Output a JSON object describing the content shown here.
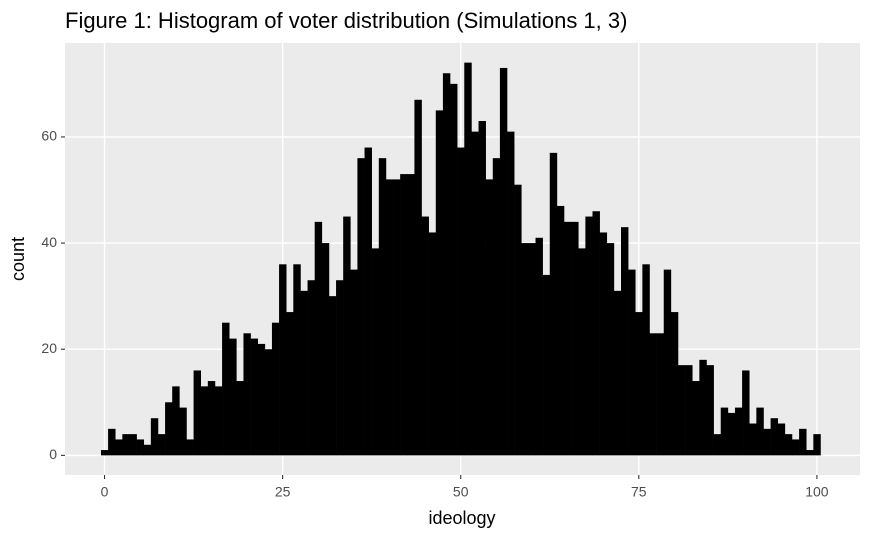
{
  "chart_data": {
    "type": "histogram",
    "title": "Figure 1: Histogram of voter distribution (Simulations 1, 3)",
    "x_label": "ideology",
    "y_label": "count",
    "color": "#000000",
    "grid": true,
    "bins": [
      -0.5,
      0.5,
      1.5,
      2.5,
      3.5,
      4.5,
      5.5,
      6.5,
      7.5,
      8.5,
      9.5,
      10.5,
      11.5,
      12.5,
      13.5,
      14.5,
      15.5,
      16.5,
      17.5,
      18.5,
      19.5,
      20.5,
      21.5,
      22.5,
      23.5,
      24.5,
      25.5,
      26.5,
      27.5,
      28.5,
      29.5,
      30.5,
      31.5,
      32.5,
      33.5,
      34.5,
      35.5,
      36.5,
      37.5,
      38.5,
      39.5,
      40.5,
      41.5,
      42.5,
      43.5,
      44.5,
      45.5,
      46.5,
      47.5,
      48.5,
      49.5,
      50.5,
      51.5,
      52.5,
      53.5,
      54.5,
      55.5,
      56.5,
      57.5,
      58.5,
      59.5,
      60.5,
      61.5,
      62.5,
      63.5,
      64.5,
      65.5,
      66.5,
      67.5,
      68.5,
      69.5,
      70.5,
      71.5,
      72.5,
      73.5,
      74.5,
      75.5,
      76.5,
      77.5,
      78.5,
      79.5,
      80.5,
      81.5,
      82.5,
      83.5,
      84.5,
      85.5,
      86.5,
      87.5,
      88.5,
      89.5,
      90.5,
      91.5,
      92.5,
      93.5,
      94.5,
      95.5,
      96.5,
      97.5,
      98.5,
      99.5,
      100.5
    ],
    "counts": [
      1,
      5,
      3,
      4,
      4,
      3,
      2,
      7,
      4,
      10,
      13,
      9,
      3,
      16,
      13,
      14,
      13,
      25,
      22,
      14,
      23,
      22,
      21,
      20,
      25,
      36,
      27,
      36,
      31,
      33,
      44,
      40,
      30,
      33,
      45,
      35,
      56,
      58,
      39,
      56,
      52,
      52,
      53,
      53,
      67,
      45,
      42,
      65,
      72,
      70,
      58,
      74,
      61,
      63,
      52,
      56,
      73,
      61,
      51,
      40,
      40,
      41,
      34,
      57,
      47,
      44,
      44,
      39,
      45,
      46,
      42,
      40,
      31,
      43,
      35,
      27,
      36,
      23,
      23,
      35,
      27,
      17,
      17,
      14,
      18,
      17,
      4,
      9,
      8,
      9,
      16,
      6,
      9,
      5,
      7,
      6,
      4,
      3,
      5,
      1,
      4
    ],
    "xlim": [
      -5.55,
      106.05
    ],
    "xticks": [
      0,
      25,
      50,
      75,
      100
    ],
    "ylim": [
      -3.7,
      77.7
    ],
    "yticks": [
      0,
      20,
      40,
      60
    ]
  }
}
